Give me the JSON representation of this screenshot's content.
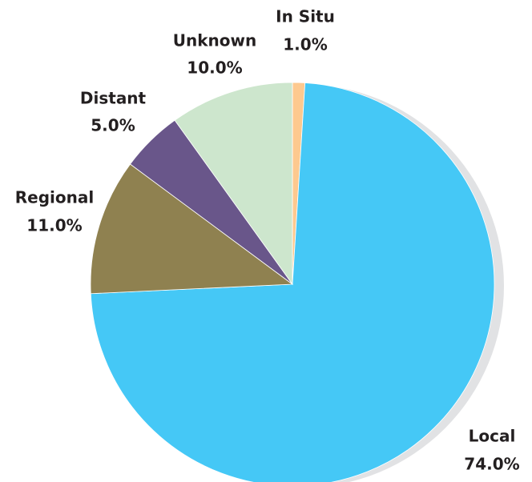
{
  "chart_data": {
    "type": "pie",
    "categories": [
      "In Situ",
      "Local",
      "Regional",
      "Distant",
      "Unknown"
    ],
    "values": [
      1,
      74,
      11,
      5,
      10
    ],
    "value_labels": [
      "1.0%",
      "74.0%",
      "11.0%",
      "5.0%",
      "10.0%"
    ],
    "colors": [
      "#fdc98f",
      "#45c8f6",
      "#8f8150",
      "#69568a",
      "#cde6cd"
    ]
  }
}
